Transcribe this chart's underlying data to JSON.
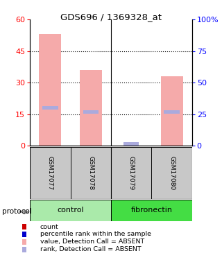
{
  "title": "GDS696 / 1369328_at",
  "samples": [
    "GSM17077",
    "GSM17078",
    "GSM17079",
    "GSM17080"
  ],
  "bar_values": [
    53,
    36,
    0,
    33
  ],
  "rank_values": [
    18,
    16,
    0.8,
    16
  ],
  "left_ylim": [
    0,
    60
  ],
  "right_ylim": [
    0,
    100
  ],
  "left_yticks": [
    0,
    15,
    30,
    45,
    60
  ],
  "right_yticks": [
    0,
    25,
    50,
    75,
    100
  ],
  "right_yticklabels": [
    "0",
    "25",
    "50",
    "75",
    "100%"
  ],
  "bar_color_absent": "#F5AAAA",
  "rank_color_absent": "#AAAADD",
  "bar_width": 0.55,
  "control_color": "#AAEAAA",
  "fibronectin_color": "#44DD44",
  "sample_bg": "#C8C8C8",
  "legend_items": [
    {
      "color": "#CC0000",
      "label": "count"
    },
    {
      "color": "#0000CC",
      "label": "percentile rank within the sample"
    },
    {
      "color": "#F5AAAA",
      "label": "value, Detection Call = ABSENT"
    },
    {
      "color": "#AAAADD",
      "label": "rank, Detection Call = ABSENT"
    }
  ]
}
